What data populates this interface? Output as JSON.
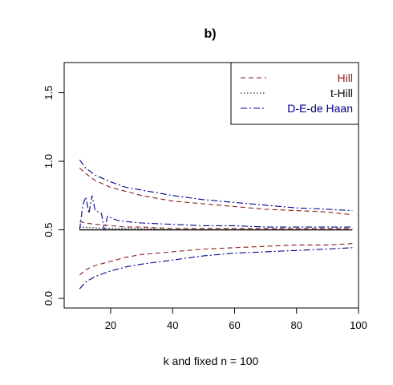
{
  "chart_data": {
    "type": "line",
    "title": "b)",
    "xlabel": "k and fixed n = 100",
    "ylabel": "",
    "xlim": [
      5,
      100
    ],
    "ylim": [
      -0.07,
      1.72
    ],
    "xticks": [
      20,
      40,
      60,
      80,
      100
    ],
    "yticks": [
      0.0,
      0.5,
      1.0,
      1.5
    ],
    "xtick_labels": [
      "20",
      "40",
      "60",
      "80",
      "100"
    ],
    "ytick_labels": [
      "0.0",
      "0.5",
      "1.0",
      "1.5"
    ],
    "grid": false,
    "legend_position": "top-right",
    "legend": [
      {
        "label": "Hill",
        "color": "#8B1A1A",
        "dash": "dashed"
      },
      {
        "label": "t-Hill",
        "color": "#000000",
        "dash": "dotted"
      },
      {
        "label": "D-E-de Haan",
        "color": "#00008B",
        "dash": "dotdash"
      }
    ],
    "reference_line": {
      "y": 0.5,
      "color": "#000000"
    },
    "series": [
      {
        "legend": 0,
        "role": "upper",
        "x": [
          10,
          12,
          15,
          20,
          25,
          30,
          40,
          50,
          60,
          70,
          80,
          90,
          98
        ],
        "y": [
          0.95,
          0.91,
          0.86,
          0.81,
          0.78,
          0.75,
          0.71,
          0.69,
          0.67,
          0.65,
          0.64,
          0.63,
          0.61
        ]
      },
      {
        "legend": 0,
        "role": "center",
        "x": [
          10,
          12,
          15,
          20,
          25,
          30,
          40,
          50,
          60,
          70,
          80,
          90,
          98
        ],
        "y": [
          0.56,
          0.55,
          0.54,
          0.53,
          0.52,
          0.52,
          0.51,
          0.51,
          0.51,
          0.51,
          0.51,
          0.51,
          0.51
        ]
      },
      {
        "legend": 0,
        "role": "lower",
        "x": [
          10,
          12,
          15,
          20,
          25,
          30,
          40,
          50,
          60,
          70,
          80,
          90,
          98
        ],
        "y": [
          0.17,
          0.21,
          0.24,
          0.27,
          0.3,
          0.32,
          0.34,
          0.36,
          0.37,
          0.38,
          0.39,
          0.39,
          0.4
        ]
      },
      {
        "legend": 1,
        "role": "center",
        "x": [
          10,
          20,
          30,
          40,
          50,
          60,
          70,
          80,
          90,
          98
        ],
        "y": [
          0.52,
          0.51,
          0.51,
          0.5,
          0.5,
          0.5,
          0.5,
          0.5,
          0.5,
          0.5
        ]
      },
      {
        "legend": 2,
        "role": "upper",
        "x": [
          10,
          12,
          15,
          20,
          25,
          30,
          40,
          50,
          60,
          70,
          80,
          90,
          98
        ],
        "y": [
          1.01,
          0.95,
          0.9,
          0.85,
          0.81,
          0.79,
          0.75,
          0.72,
          0.7,
          0.68,
          0.66,
          0.65,
          0.64
        ]
      },
      {
        "legend": 2,
        "role": "center",
        "x": [
          10,
          11,
          12,
          13,
          14,
          15,
          16,
          17,
          18,
          19,
          20,
          21,
          22,
          25,
          30,
          40,
          50,
          60,
          70,
          80,
          90,
          98
        ],
        "y": [
          0.5,
          0.68,
          0.74,
          0.62,
          0.75,
          0.64,
          0.63,
          0.62,
          0.5,
          0.6,
          0.59,
          0.58,
          0.57,
          0.56,
          0.55,
          0.54,
          0.53,
          0.53,
          0.52,
          0.52,
          0.52,
          0.52
        ]
      },
      {
        "legend": 2,
        "role": "lower",
        "x": [
          10,
          12,
          15,
          20,
          25,
          30,
          40,
          50,
          60,
          70,
          80,
          90,
          98
        ],
        "y": [
          0.07,
          0.12,
          0.16,
          0.2,
          0.23,
          0.25,
          0.28,
          0.31,
          0.33,
          0.34,
          0.35,
          0.36,
          0.37
        ]
      }
    ]
  }
}
